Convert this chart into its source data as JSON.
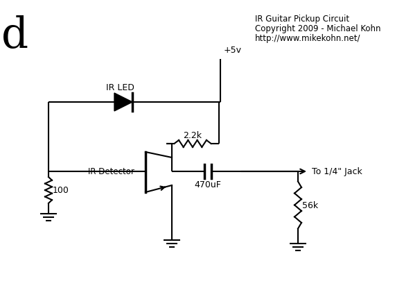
{
  "title": "IR Guitar Pickup Circuit",
  "title_line2": "Copyright 2009 - Michael Kohn",
  "title_line3": "http://www.mikekohn.net/",
  "bg_color": "#ffffff",
  "line_color": "#000000",
  "label_d": "d",
  "label_5v": "+5v",
  "label_irled": "IR LED",
  "label_2k2": "2.2k",
  "label_irdet": "IR Detector",
  "label_100": "100",
  "label_470uF": "470uF",
  "label_56k": "56k",
  "label_jack": "To 1/4\" Jack",
  "figw": 5.83,
  "figh": 4.06,
  "dpi": 100
}
